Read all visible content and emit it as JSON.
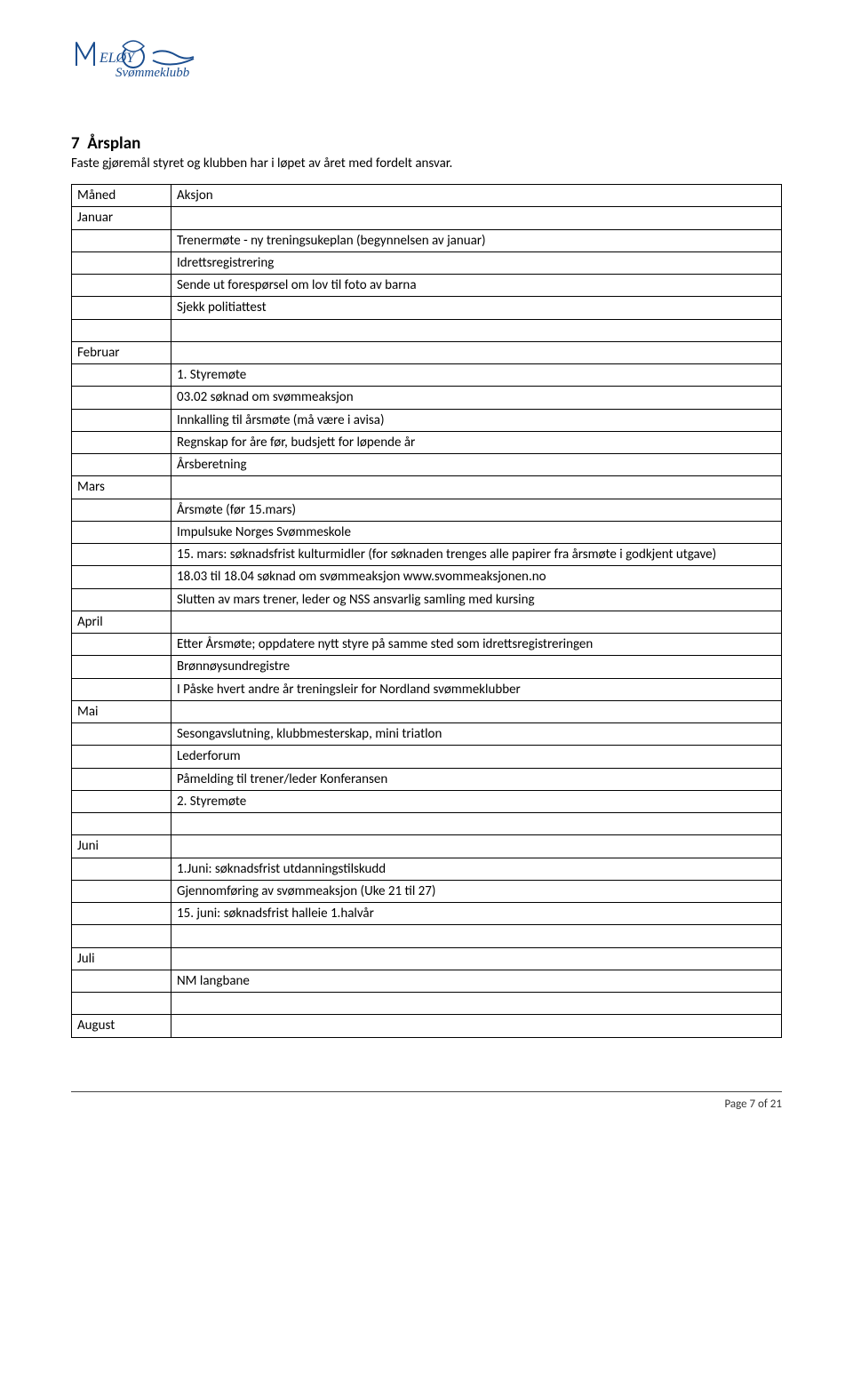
{
  "logo": {
    "name": "meloy-svommeklubb-logo",
    "primary_color": "#1a4d8f",
    "text1": "MELØY",
    "text2": "Svømmeklubb"
  },
  "section": {
    "number": "7",
    "title": "Årsplan",
    "intro": "Faste gjøremål styret og klubben har i løpet av året med fordelt ansvar."
  },
  "table": {
    "header": {
      "col1": "Måned",
      "col2": "Aksjon"
    },
    "rows": [
      {
        "c1": "Januar",
        "c2": ""
      },
      {
        "c1": "",
        "c2": "Trenermøte - ny treningsukeplan (begynnelsen av januar)"
      },
      {
        "c1": "",
        "c2": "Idrettsregistrering"
      },
      {
        "c1": "",
        "c2": "Sende ut forespørsel om lov til foto av barna"
      },
      {
        "c1": "",
        "c2": "Sjekk politiattest"
      },
      {
        "c1": "",
        "c2": ""
      },
      {
        "c1": "Februar",
        "c2": ""
      },
      {
        "c1": "",
        "c2": "1. Styremøte"
      },
      {
        "c1": "",
        "c2": "03.02 søknad om svømmeaksjon"
      },
      {
        "c1": "",
        "c2": "Innkalling til årsmøte (må være i avisa)"
      },
      {
        "c1": "",
        "c2": "Regnskap for åre før, budsjett for løpende år"
      },
      {
        "c1": "",
        "c2": "Årsberetning"
      },
      {
        "c1": "Mars",
        "c2": ""
      },
      {
        "c1": "",
        "c2": "Årsmøte (før 15.mars)"
      },
      {
        "c1": "",
        "c2": "Impulsuke Norges Svømmeskole"
      },
      {
        "c1": "",
        "c2": "15. mars: søknadsfrist kulturmidler (for søknaden trenges alle papirer fra årsmøte i godkjent utgave)"
      },
      {
        "c1": "",
        "c2": "18.03 til 18.04 søknad om svømmeaksjon www.svommeaksjonen.no"
      },
      {
        "c1": "",
        "c2": "Slutten av mars trener, leder og NSS ansvarlig samling med kursing"
      },
      {
        "c1": "April",
        "c2": ""
      },
      {
        "c1": "",
        "c2": "Etter Årsmøte; oppdatere nytt styre på samme sted som idrettsregistreringen"
      },
      {
        "c1": "",
        "c2": "Brønnøysundregistre"
      },
      {
        "c1": "",
        "c2": " I Påske hvert andre år treningsleir for Nordland svømmeklubber"
      },
      {
        "c1": "Mai",
        "c2": ""
      },
      {
        "c1": "",
        "c2": "Sesongavslutning, klubbmesterskap, mini triatlon"
      },
      {
        "c1": "",
        "c2": "Lederforum"
      },
      {
        "c1": "",
        "c2": "Påmelding til trener/leder Konferansen"
      },
      {
        "c1": "",
        "c2": "2. Styremøte"
      },
      {
        "c1": "",
        "c2": ""
      },
      {
        "c1": "Juni",
        "c2": ""
      },
      {
        "c1": "",
        "c2": "1.Juni: søknadsfrist utdanningstilskudd"
      },
      {
        "c1": "",
        "c2": "Gjennomføring av svømmeaksjon (Uke 21 til 27)"
      },
      {
        "c1": "",
        "c2": "15. juni: søknadsfrist halleie 1.halvår"
      },
      {
        "c1": "",
        "c2": ""
      },
      {
        "c1": "Juli",
        "c2": ""
      },
      {
        "c1": "",
        "c2": "NM langbane"
      },
      {
        "c1": "",
        "c2": ""
      },
      {
        "c1": "August",
        "c2": ""
      }
    ]
  },
  "footer": {
    "page_label": "Page 7 of 21"
  },
  "colors": {
    "text": "#000000",
    "border": "#000000",
    "background": "#ffffff",
    "logo": "#1a4d8f",
    "footer_rule": "#444444"
  },
  "fonts": {
    "body_size_pt": 11,
    "title_size_pt": 14
  }
}
